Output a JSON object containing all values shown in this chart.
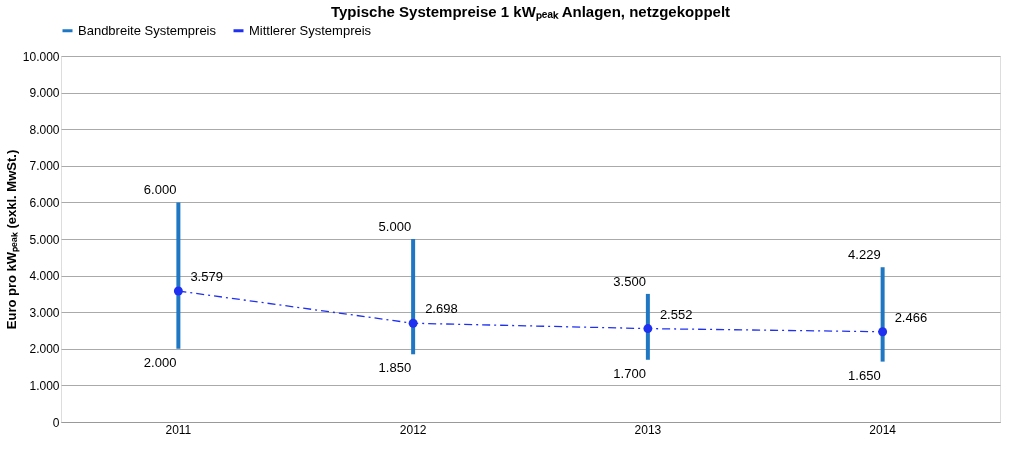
{
  "chart_data": {
    "type": "bar",
    "title": "Typische Systempreise 1 kWₚₑₐₖ Anlagen, netzgekoppelt",
    "ylabel": "Euro pro kWₚₑₐₖ  (exkl. MwSt.)",
    "categories": [
      "2011",
      "2012",
      "2013",
      "2014"
    ],
    "series": [
      {
        "name": "Bandbreite Systempreis",
        "color": "#1f77c4",
        "base": [
          2000,
          1850,
          1700,
          1650
        ],
        "values": [
          4000,
          3150,
          1800,
          2579
        ]
      },
      {
        "name": "Mittlerer Systempreis",
        "type": "line",
        "color": "#2030f0",
        "marker": "circle",
        "line_style": "dashed",
        "values": [
          3579,
          2698,
          2552,
          2466
        ],
        "value_labels": [
          "3.579",
          "2.698",
          "2.552",
          "2.466"
        ]
      }
    ],
    "ylim": [
      0,
      10000
    ],
    "yticks": [
      {
        "value": 0,
        "label": "0"
      },
      {
        "value": 1000,
        "label": "1.000"
      },
      {
        "value": 2000,
        "label": "2.000"
      },
      {
        "value": 3000,
        "label": "3.000"
      },
      {
        "value": 4000,
        "label": "4.000"
      },
      {
        "value": 5000,
        "label": "5.000"
      },
      {
        "value": 6000,
        "label": "6.000"
      },
      {
        "value": 7000,
        "label": "7.000"
      },
      {
        "value": 8000,
        "label": "8.000"
      },
      {
        "value": 9000,
        "label": "9.000"
      },
      {
        "value": 10000,
        "label": "10.000"
      }
    ],
    "grid": "y",
    "legend": "top",
    "annotations": [
      {
        "text": "6.000",
        "x": "2011",
        "y": 6000
      },
      {
        "text": "2.000",
        "x": "2011",
        "y": 2000
      },
      {
        "text": "5.000",
        "x": "2012",
        "y": 5000
      },
      {
        "text": "1.850",
        "x": "2012",
        "y": 1850
      },
      {
        "text": "3.500",
        "x": "2013",
        "y": 3500
      },
      {
        "text": "1.700",
        "x": "2013",
        "y": 1700
      },
      {
        "text": "4.229",
        "x": "2014",
        "y": 4229
      },
      {
        "text": "1.650",
        "x": "2014",
        "y": 1650
      }
    ]
  }
}
